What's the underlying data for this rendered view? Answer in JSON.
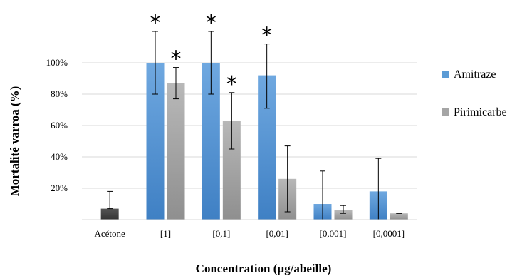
{
  "chart_data": {
    "type": "bar",
    "title": "",
    "xlabel": "Concentration (µg/abeille)",
    "ylabel": "Mortalité varroa (%)",
    "ylim": [
      0,
      100
    ],
    "yticks": [
      "20%",
      "40%",
      "60%",
      "80%",
      "100%"
    ],
    "ytick_values": [
      20,
      40,
      60,
      80,
      100
    ],
    "grid": "horizontal",
    "legend_position": "right",
    "categories": [
      "Acétone",
      "[1]",
      "[0,1]",
      "[0,01]",
      "[0,001]",
      "[0,0001]"
    ],
    "control": {
      "category": "Acétone",
      "value": 7,
      "error_upper": 18,
      "error_lower": 7,
      "color": "#404040"
    },
    "series": [
      {
        "name": "Amitraze",
        "color": "#5b9bd5",
        "values": [
          null,
          100,
          100,
          92,
          10,
          18
        ],
        "error_upper": [
          null,
          120,
          120,
          112,
          31,
          39
        ],
        "error_lower": [
          null,
          80,
          80,
          71,
          0,
          0
        ],
        "significant": [
          false,
          true,
          true,
          true,
          false,
          false
        ]
      },
      {
        "name": "Pirimicarbe",
        "color": "#a5a5a5",
        "values": [
          null,
          87,
          63,
          26,
          6,
          4
        ],
        "error_upper": [
          null,
          97,
          81,
          47,
          9,
          4
        ],
        "error_lower": [
          null,
          77,
          45,
          5,
          4,
          4
        ],
        "significant": [
          false,
          true,
          true,
          false,
          false,
          false
        ]
      }
    ],
    "significance_marker": "*"
  }
}
